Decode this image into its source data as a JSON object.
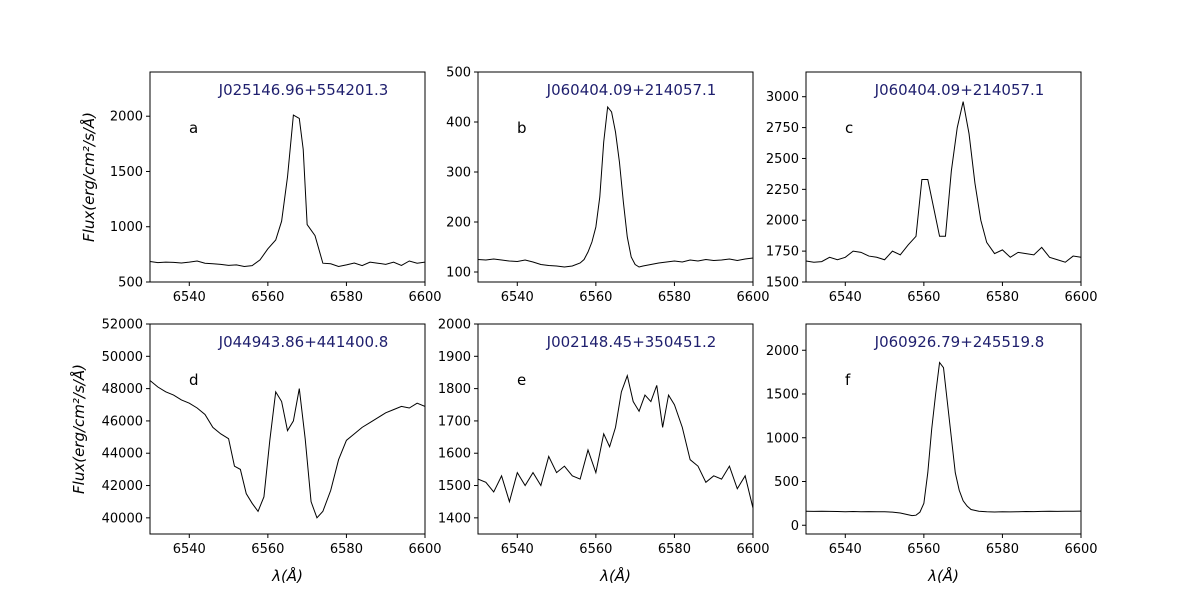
{
  "figure": {
    "xlabel": "λ(Å)",
    "ylabel": "Flux(erg/cm²/s/Å)",
    "title_color": "#1f1f6e",
    "line_color": "#000000"
  },
  "chart_data": [
    {
      "type": "line",
      "letter": "a",
      "title": "J025146.96+554201.3",
      "xlim": [
        6530,
        6600
      ],
      "ylim": [
        500,
        2400
      ],
      "xticks": [
        6540,
        6560,
        6580,
        6600
      ],
      "yticks": [
        500,
        1000,
        1500,
        2000
      ],
      "x": [
        6530,
        6532,
        6534,
        6536,
        6538,
        6540,
        6542,
        6544,
        6546,
        6548,
        6550,
        6552,
        6554,
        6556,
        6558,
        6560,
        6562,
        6563.5,
        6565,
        6566.5,
        6568,
        6569,
        6570,
        6572,
        6574,
        6576,
        6578,
        6580,
        6582,
        6584,
        6586,
        6588,
        6590,
        6592,
        6594,
        6596,
        6598,
        6600
      ],
      "y": [
        685,
        675,
        680,
        678,
        672,
        680,
        690,
        670,
        665,
        660,
        650,
        655,
        640,
        648,
        700,
        800,
        880,
        1050,
        1450,
        2010,
        1980,
        1700,
        1020,
        920,
        670,
        665,
        640,
        655,
        672,
        648,
        680,
        670,
        660,
        680,
        650,
        690,
        670,
        680
      ]
    },
    {
      "type": "line",
      "letter": "b",
      "title": "J060404.09+214057.1",
      "xlim": [
        6530,
        6600
      ],
      "ylim": [
        80,
        500
      ],
      "xticks": [
        6540,
        6560,
        6580,
        6600
      ],
      "yticks": [
        100,
        200,
        300,
        400,
        500
      ],
      "x": [
        6530,
        6532,
        6534,
        6536,
        6538,
        6540,
        6542,
        6544,
        6546,
        6548,
        6550,
        6552,
        6554,
        6556,
        6557,
        6558,
        6559,
        6560,
        6561,
        6562,
        6563,
        6564,
        6565,
        6566,
        6567,
        6568,
        6569,
        6570,
        6571,
        6572,
        6574,
        6576,
        6578,
        6580,
        6582,
        6584,
        6586,
        6588,
        6590,
        6592,
        6594,
        6596,
        6598,
        6600
      ],
      "y": [
        125,
        124,
        126,
        124,
        122,
        121,
        124,
        120,
        115,
        113,
        112,
        110,
        112,
        118,
        125,
        140,
        160,
        190,
        250,
        360,
        430,
        420,
        380,
        320,
        240,
        170,
        130,
        115,
        110,
        112,
        115,
        118,
        120,
        122,
        120,
        124,
        122,
        125,
        123,
        124,
        126,
        123,
        126,
        128
      ]
    },
    {
      "type": "line",
      "letter": "c",
      "title": "J060404.09+214057.1",
      "xlim": [
        6530,
        6600
      ],
      "ylim": [
        1500,
        3200
      ],
      "xticks": [
        6540,
        6560,
        6580,
        6600
      ],
      "yticks": [
        1500,
        1750,
        2000,
        2250,
        2500,
        2750,
        3000
      ],
      "x": [
        6530,
        6532,
        6534,
        6536,
        6538,
        6540,
        6542,
        6544,
        6546,
        6548,
        6550,
        6552,
        6554,
        6556,
        6558,
        6559.5,
        6561,
        6562.5,
        6564,
        6565.5,
        6567,
        6568.5,
        6570,
        6571.5,
        6573,
        6574.5,
        6576,
        6578,
        6580,
        6582,
        6584,
        6586,
        6588,
        6590,
        6592,
        6594,
        6596,
        6598,
        6600
      ],
      "y": [
        1670,
        1660,
        1665,
        1700,
        1680,
        1700,
        1750,
        1740,
        1710,
        1700,
        1680,
        1750,
        1720,
        1800,
        1870,
        2330,
        2330,
        2100,
        1870,
        1870,
        2400,
        2750,
        2960,
        2700,
        2300,
        2000,
        1820,
        1730,
        1760,
        1700,
        1740,
        1730,
        1720,
        1780,
        1700,
        1680,
        1660,
        1710,
        1700
      ]
    },
    {
      "type": "line",
      "letter": "d",
      "title": "J044943.86+441400.8",
      "xlim": [
        6530,
        6600
      ],
      "ylim": [
        39000,
        52000
      ],
      "xticks": [
        6540,
        6560,
        6580,
        6600
      ],
      "yticks": [
        40000,
        42000,
        44000,
        46000,
        48000,
        50000,
        52000
      ],
      "x": [
        6530,
        6532,
        6534,
        6536,
        6538,
        6540,
        6542,
        6544,
        6546,
        6548,
        6550,
        6551.5,
        6553,
        6554.5,
        6556,
        6557.5,
        6559,
        6560.5,
        6562,
        6563.5,
        6565,
        6566.5,
        6568,
        6569.5,
        6571,
        6572.5,
        6574,
        6576,
        6578,
        6580,
        6582,
        6584,
        6586,
        6588,
        6590,
        6592,
        6594,
        6596,
        6598,
        6600
      ],
      "y": [
        48500,
        48100,
        47800,
        47600,
        47300,
        47100,
        46800,
        46400,
        45600,
        45200,
        44900,
        43200,
        43000,
        41500,
        40900,
        40400,
        41300,
        44800,
        47800,
        47200,
        45400,
        46000,
        48000,
        44900,
        41000,
        40000,
        40400,
        41700,
        43600,
        44800,
        45200,
        45600,
        45900,
        46200,
        46500,
        46700,
        46900,
        46800,
        47100,
        46900
      ]
    },
    {
      "type": "line",
      "letter": "e",
      "title": "J002148.45+350451.2",
      "xlim": [
        6530,
        6600
      ],
      "ylim": [
        1350,
        2000
      ],
      "xticks": [
        6540,
        6560,
        6580,
        6600
      ],
      "yticks": [
        1400,
        1500,
        1600,
        1700,
        1800,
        1900,
        2000
      ],
      "x": [
        6530,
        6532,
        6534,
        6536,
        6538,
        6540,
        6542,
        6544,
        6546,
        6548,
        6550,
        6552,
        6554,
        6556,
        6558,
        6560,
        6562,
        6563.5,
        6565,
        6566.5,
        6568,
        6569.5,
        6571,
        6572.5,
        6574,
        6575.5,
        6577,
        6578.5,
        6580,
        6582,
        6584,
        6586,
        6588,
        6590,
        6592,
        6594,
        6596,
        6598,
        6600
      ],
      "y": [
        1520,
        1510,
        1480,
        1530,
        1450,
        1540,
        1500,
        1540,
        1500,
        1590,
        1540,
        1560,
        1530,
        1520,
        1610,
        1540,
        1660,
        1620,
        1680,
        1790,
        1840,
        1760,
        1730,
        1780,
        1760,
        1810,
        1680,
        1780,
        1750,
        1680,
        1580,
        1560,
        1510,
        1530,
        1520,
        1560,
        1490,
        1530,
        1430
      ]
    },
    {
      "type": "line",
      "letter": "f",
      "title": "J060926.79+245519.8",
      "xlim": [
        6530,
        6600
      ],
      "ylim": [
        -100,
        2300
      ],
      "xticks": [
        6540,
        6560,
        6580,
        6600
      ],
      "yticks": [
        0,
        500,
        1000,
        1500,
        2000
      ],
      "x": [
        6530,
        6532,
        6534,
        6536,
        6538,
        6540,
        6542,
        6544,
        6546,
        6548,
        6550,
        6552,
        6554,
        6556,
        6557,
        6558,
        6559,
        6560,
        6561,
        6562,
        6563,
        6564,
        6565,
        6566,
        6567,
        6568,
        6569,
        6570,
        6571,
        6572,
        6574,
        6576,
        6578,
        6580,
        6582,
        6584,
        6586,
        6588,
        6590,
        6592,
        6594,
        6596,
        6598,
        6600
      ],
      "y": [
        160,
        158,
        160,
        158,
        157,
        155,
        157,
        155,
        156,
        155,
        154,
        150,
        140,
        120,
        110,
        115,
        150,
        250,
        600,
        1100,
        1500,
        1860,
        1800,
        1400,
        1000,
        600,
        400,
        280,
        220,
        180,
        160,
        155,
        152,
        154,
        153,
        155,
        157,
        156,
        158,
        160,
        158,
        160,
        160,
        162
      ]
    }
  ]
}
